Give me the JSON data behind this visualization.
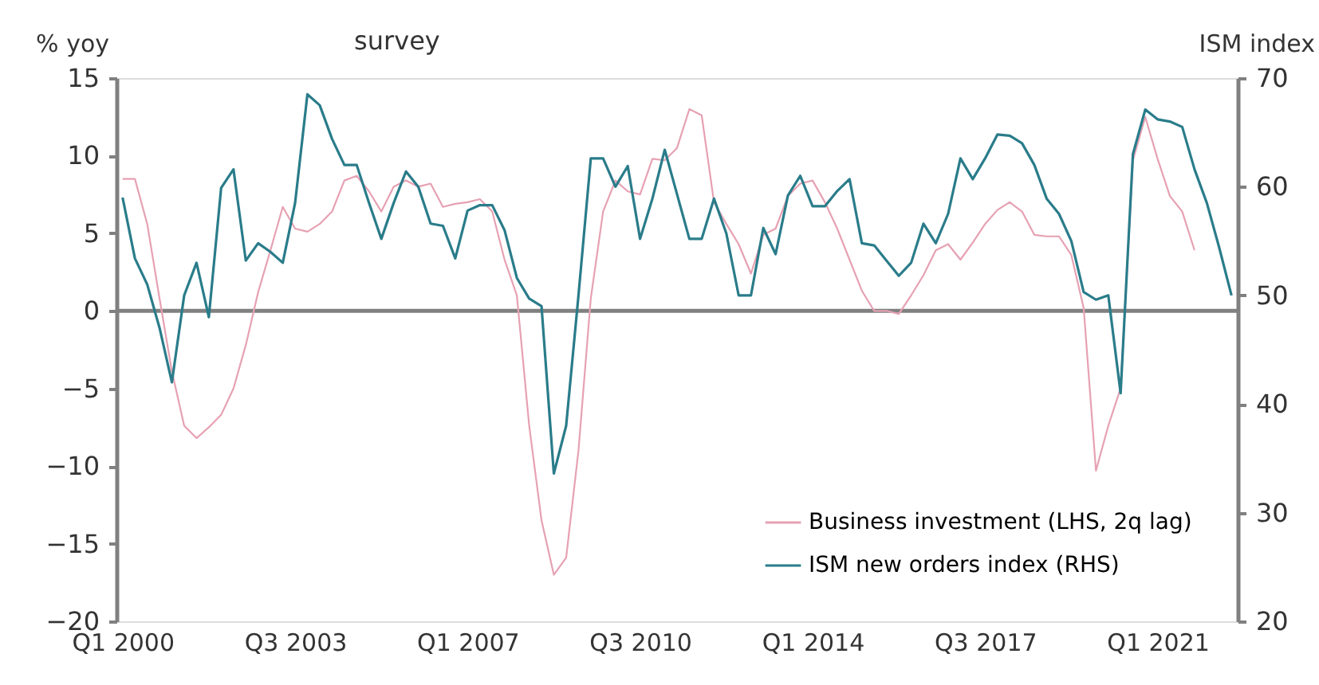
{
  "chart_data": {
    "type": "line",
    "title": "survey",
    "ylabel": "% yoy",
    "y2label": "ISM index",
    "categories": [
      "Q1 2000",
      null,
      null,
      null,
      null,
      null,
      null,
      null,
      null,
      null,
      null,
      null,
      null,
      null,
      "Q3 2003",
      null,
      null,
      null,
      null,
      null,
      null,
      null,
      null,
      null,
      null,
      null,
      null,
      null,
      "Q1 2007",
      null,
      null,
      null,
      null,
      null,
      null,
      null,
      null,
      null,
      null,
      null,
      null,
      null,
      "Q3 2010",
      null,
      null,
      null,
      null,
      null,
      null,
      null,
      null,
      null,
      null,
      null,
      null,
      null,
      "Q1 2014",
      null,
      null,
      null,
      null,
      null,
      null,
      null,
      null,
      null,
      null,
      null,
      null,
      null,
      "Q3 2017",
      null,
      null,
      null,
      null,
      null,
      null,
      null,
      null,
      null,
      null,
      null,
      null,
      null,
      "Q1 2021",
      null,
      null,
      null,
      null,
      null,
      null
    ],
    "series": [
      {
        "name": "Business investment (LHS, 2q lag)",
        "color": "#e6a1b3",
        "axis": "y",
        "values": [
          8.5,
          8.5,
          5.6,
          0.8,
          -3.9,
          -7.4,
          -8.2,
          -7.5,
          -6.7,
          -5,
          -2.2,
          1.2,
          3.9,
          6.7,
          5.3,
          5.1,
          5.6,
          6.4,
          8.4,
          8.7,
          7.7,
          6.4,
          8,
          8.4,
          8,
          8.2,
          6.7,
          6.9,
          7,
          7.2,
          6.4,
          3.3,
          1,
          -7.4,
          -13.5,
          -17,
          -15.9,
          -9,
          0.8,
          6.4,
          8.4,
          7.7,
          7.5,
          9.8,
          9.7,
          10.5,
          13,
          12.6,
          7,
          5.6,
          4.3,
          2.4,
          4.9,
          5.3,
          7.4,
          8.2,
          8.4,
          7,
          5.3,
          3.3,
          1.3,
          0,
          0,
          -0.2,
          1,
          2.3,
          3.9,
          4.3,
          3.3,
          4.4,
          5.6,
          6.5,
          7,
          6.4,
          4.9,
          4.8,
          4.8,
          3.6,
          0.2,
          -10.3,
          -7.4,
          -5,
          9.7,
          12.5,
          9.8,
          7.4,
          6.4,
          3.9,
          null,
          null,
          null
        ]
      },
      {
        "name": "ISM new orders index (RHS)",
        "color": "#2a7c8a",
        "axis": "y2",
        "values": [
          59,
          53.4,
          51,
          47,
          42,
          50,
          53,
          48,
          59.9,
          61.6,
          53.2,
          54.8,
          54,
          53,
          58.5,
          68.5,
          67.5,
          64.4,
          62,
          62,
          58.5,
          55.2,
          58.5,
          61.4,
          60,
          56.6,
          56.4,
          53.4,
          57.8,
          58.3,
          58.3,
          56,
          51.6,
          49.7,
          49,
          33.6,
          38,
          50,
          62.6,
          62.6,
          60,
          61.9,
          55.2,
          58.9,
          63.4,
          59.3,
          55.2,
          55.2,
          58.9,
          55.7,
          50,
          50,
          56.2,
          53.8,
          59.2,
          61,
          58.2,
          58.2,
          59.6,
          60.7,
          54.8,
          54.6,
          53.2,
          51.8,
          53,
          56.6,
          54.8,
          57.5,
          62.6,
          60.7,
          62.6,
          64.8,
          64.7,
          64,
          62,
          58.9,
          57.5,
          55,
          50.3,
          49.6,
          50,
          41,
          63,
          67.1,
          66.2,
          66,
          65.5,
          61.6,
          58.5,
          54.4,
          50
        ]
      }
    ],
    "ylim": [
      -20,
      15
    ],
    "yticks": [
      -20,
      -15,
      -10,
      -5,
      0,
      5,
      10,
      15
    ],
    "y2lim": [
      20,
      70
    ],
    "y2ticks": [
      20,
      30,
      40,
      50,
      60,
      70
    ],
    "ref_lines": [
      {
        "axis": "y",
        "value": 0,
        "color": "#808080"
      }
    ],
    "legend": "bottom right",
    "grid": false
  }
}
